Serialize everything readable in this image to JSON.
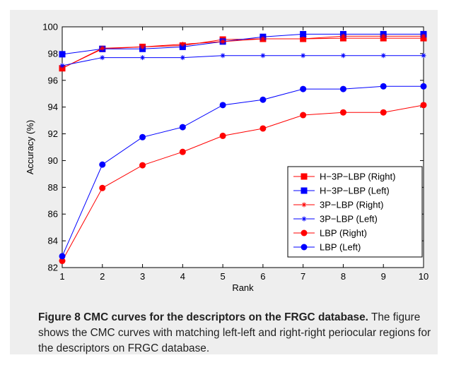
{
  "figure": {
    "caption_title": "Figure 8 CMC curves for the descriptors on the FRGC database.",
    "caption_body": "The figure shows the CMC curves with matching left-left and right-right periocular regions for the descriptors on FRGC database."
  },
  "chart_data": {
    "type": "line",
    "title": "",
    "xlabel": "Rank",
    "ylabel": "Accuracy (%)",
    "xlim": [
      1,
      10
    ],
    "ylim": [
      82,
      100
    ],
    "xticks": [
      1,
      2,
      3,
      4,
      5,
      6,
      7,
      8,
      9,
      10
    ],
    "yticks": [
      82,
      84,
      86,
      88,
      90,
      92,
      94,
      96,
      98,
      100
    ],
    "grid": false,
    "legend_position": "lower-right",
    "x": [
      1,
      2,
      3,
      4,
      5,
      6,
      7,
      8,
      9,
      10
    ],
    "series": [
      {
        "name": "H−3P−LBP (Right)",
        "color": "#ff0000",
        "marker": "square",
        "values": [
          96.9,
          98.35,
          98.5,
          98.6,
          99.05,
          99.1,
          99.1,
          99.15,
          99.15,
          99.15
        ]
      },
      {
        "name": "H−3P−LBP (Left)",
        "color": "#0000ff",
        "marker": "square",
        "values": [
          97.95,
          98.35,
          98.35,
          98.5,
          98.9,
          99.25,
          99.45,
          99.45,
          99.45,
          99.45
        ]
      },
      {
        "name": "3P−LBP (Right)",
        "color": "#ff0000",
        "marker": "star",
        "values": [
          96.9,
          98.4,
          98.5,
          98.7,
          98.9,
          99.1,
          99.1,
          99.3,
          99.3,
          99.3
        ]
      },
      {
        "name": "3P−LBP (Left)",
        "color": "#0000ff",
        "marker": "star",
        "values": [
          97.1,
          97.7,
          97.7,
          97.7,
          97.85,
          97.85,
          97.85,
          97.85,
          97.85,
          97.85
        ]
      },
      {
        "name": "LBP (Right)",
        "color": "#ff0000",
        "marker": "circle",
        "values": [
          82.5,
          87.95,
          89.65,
          90.65,
          91.85,
          92.4,
          93.4,
          93.6,
          93.6,
          94.15
        ]
      },
      {
        "name": "LBP (Left)",
        "color": "#0000ff",
        "marker": "circle",
        "values": [
          82.85,
          89.7,
          91.75,
          92.5,
          94.15,
          94.55,
          95.35,
          95.35,
          95.55,
          95.55
        ]
      }
    ]
  }
}
